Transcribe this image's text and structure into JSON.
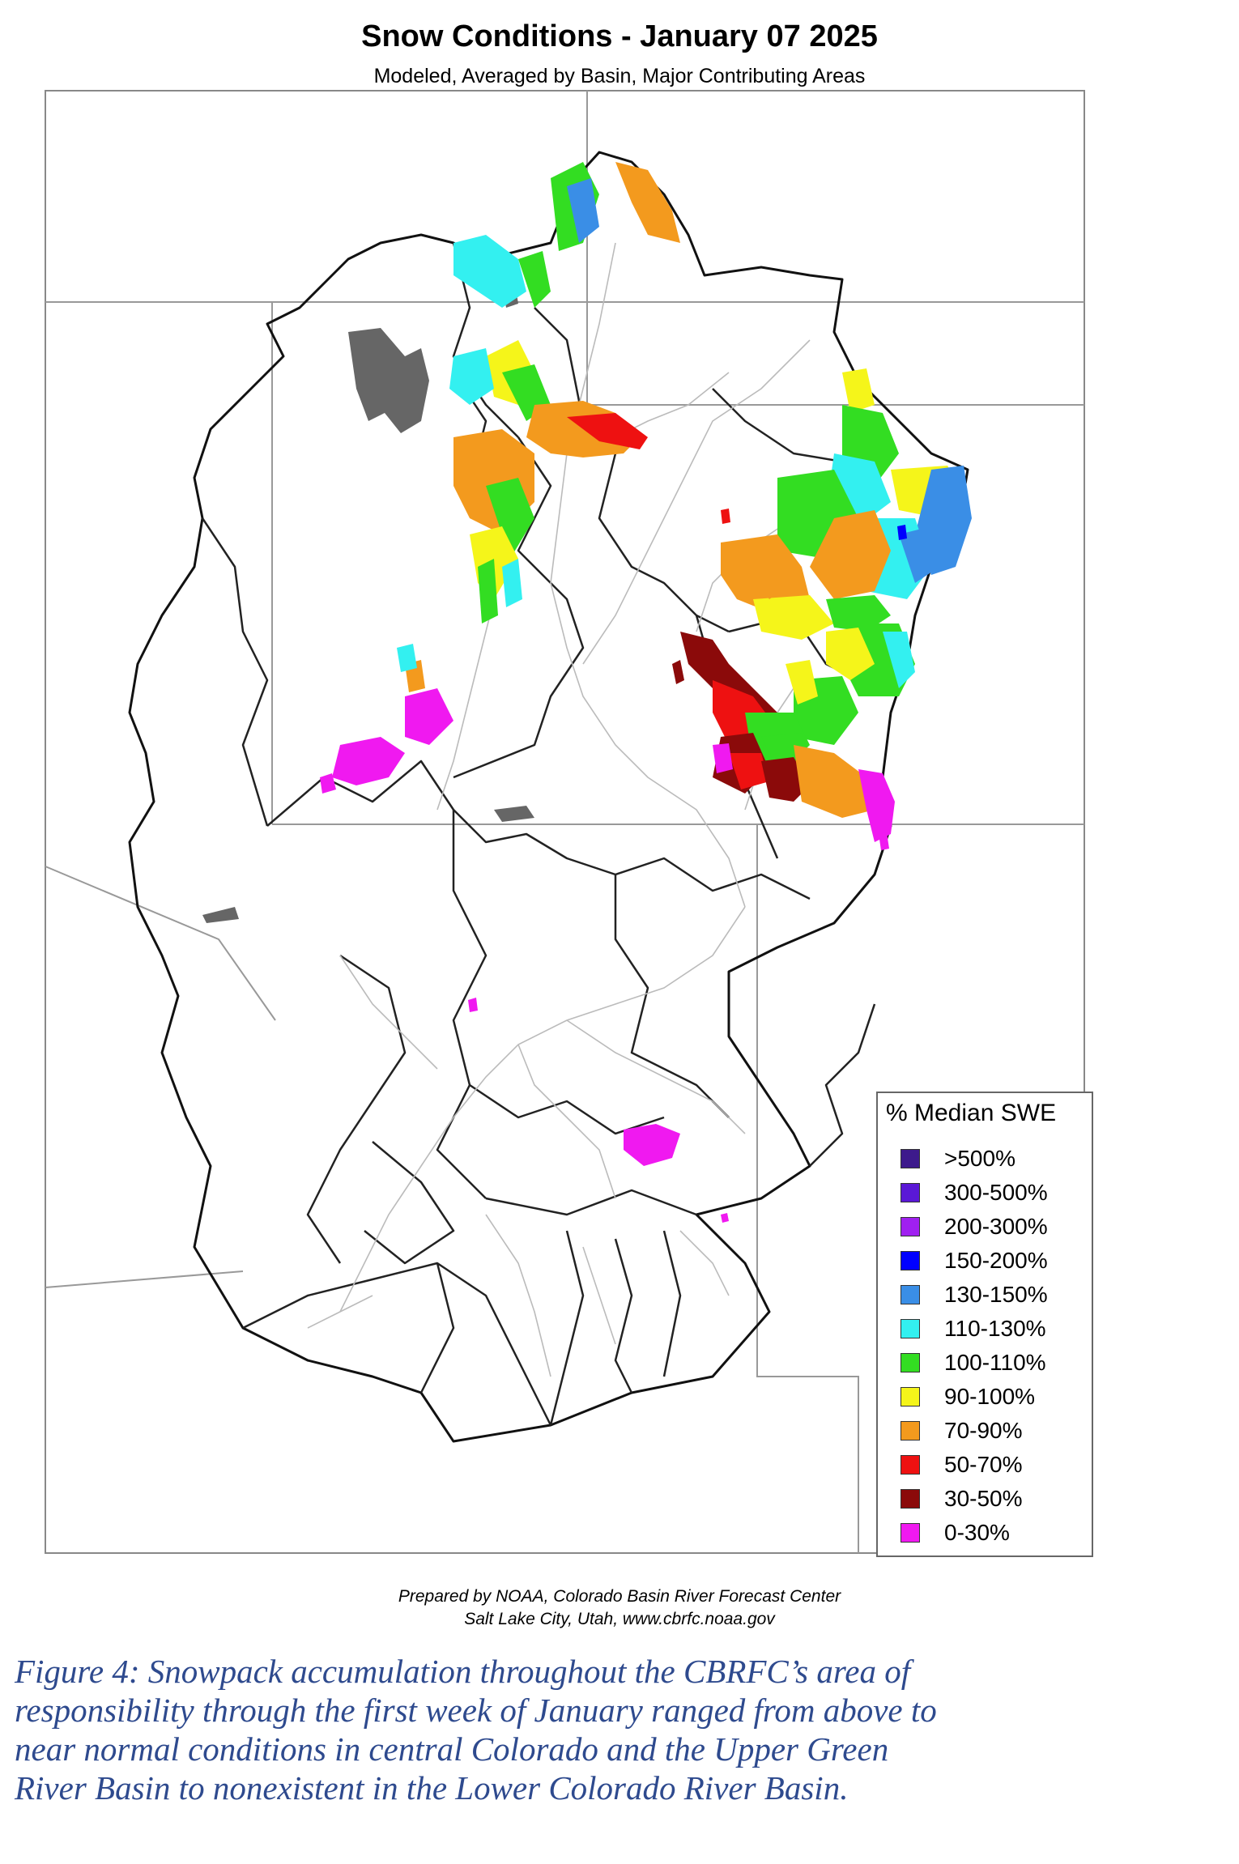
{
  "header": {
    "title": "Snow Conditions - January 07 2025",
    "subtitle": "Modeled, Averaged by Basin, Major Contributing Areas"
  },
  "legend": {
    "title": "% Median SWE",
    "items": [
      {
        "label": ">500%",
        "color": "#3d1a8c"
      },
      {
        "label": "300-500%",
        "color": "#5a18d6"
      },
      {
        "label": "200-300%",
        "color": "#a020f0"
      },
      {
        "label": "150-200%",
        "color": "#0000ff"
      },
      {
        "label": "130-150%",
        "color": "#3a8ee6"
      },
      {
        "label": "110-130%",
        "color": "#33f0f0"
      },
      {
        "label": "100-110%",
        "color": "#33dd22"
      },
      {
        "label": "90-100%",
        "color": "#f5f51a"
      },
      {
        "label": "70-90%",
        "color": "#f39a1e"
      },
      {
        "label": "50-70%",
        "color": "#ee1111"
      },
      {
        "label": "30-50%",
        "color": "#8b0a0a"
      },
      {
        "label": "0-30%",
        "color": "#f019f0"
      }
    ]
  },
  "footer": {
    "credit_line1": "Prepared by NOAA, Colorado Basin River Forecast Center",
    "credit_line2": "Salt Lake City, Utah, www.cbrfc.noaa.gov"
  },
  "caption": {
    "lines": [
      "Figure 4:  Snowpack accumulation throughout the CBRFC’s area of",
      "responsibility through the first week of January ranged from above to",
      "near normal conditions in central Colorado and the Upper Green",
      "River Basin to nonexistent in the Lower Colorado River Basin."
    ]
  }
}
